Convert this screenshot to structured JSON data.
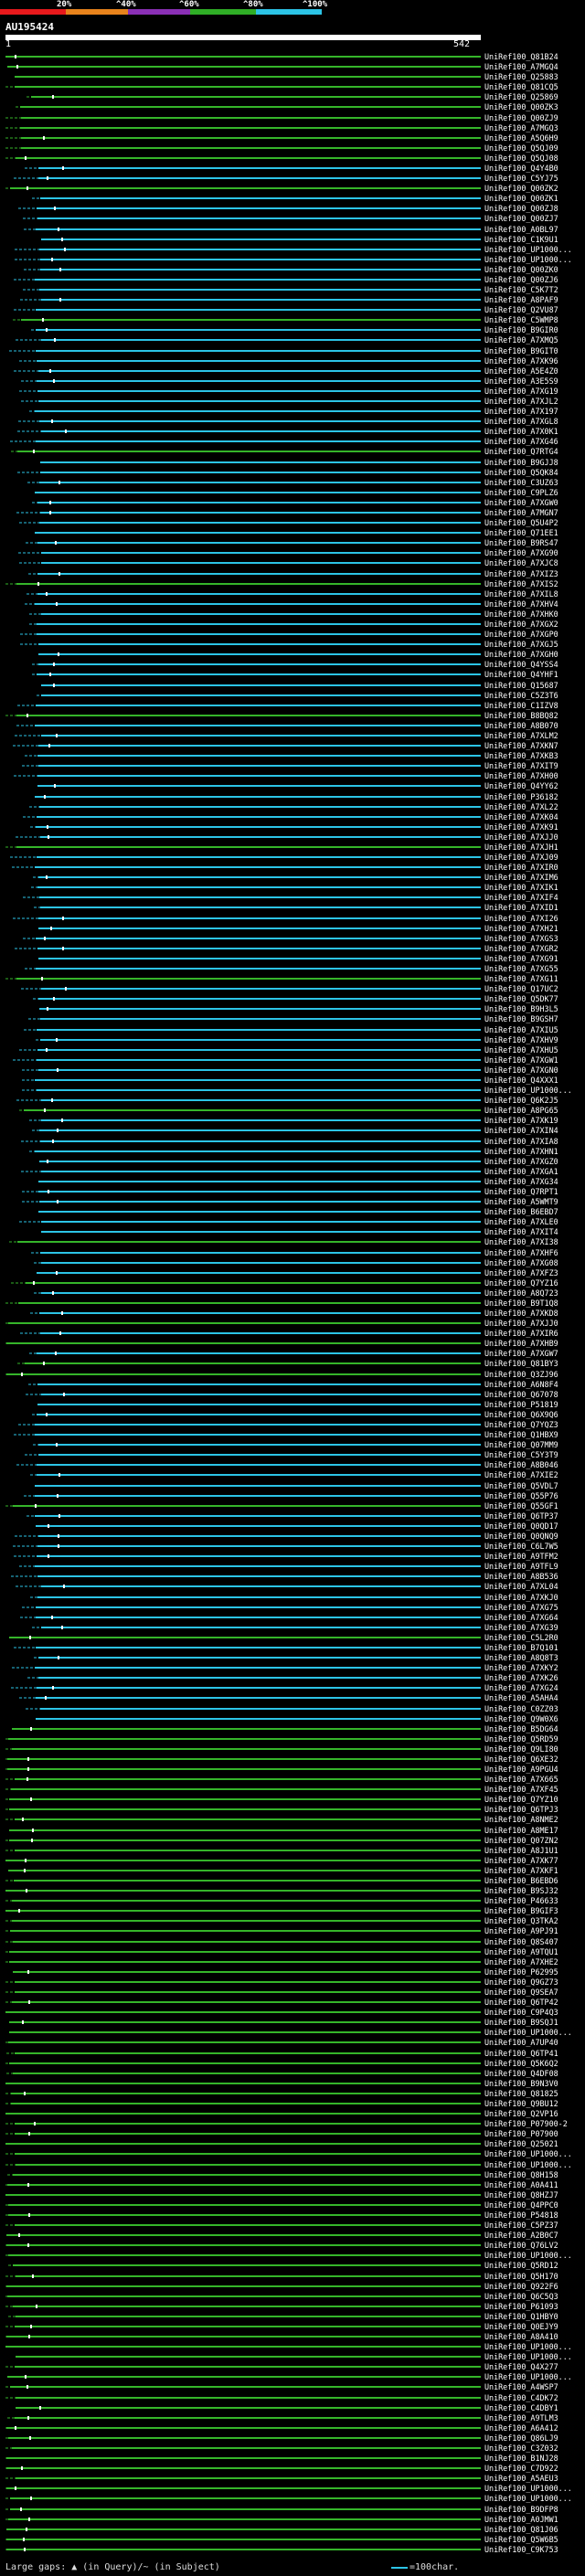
{
  "scale": {
    "marks": [
      "20%",
      "^40%",
      "^60%",
      "^80%",
      "^100%"
    ],
    "colors": [
      "#e8191c",
      "#e8831c",
      "#8a2fb5",
      "#2fae26",
      "#2cc4e6"
    ]
  },
  "query": {
    "id": "AU195424",
    "start": "1",
    "end": "542"
  },
  "hits": [
    "UniRef100_Q81B24",
    "UniRef100_A7MGQ4",
    "UniRef100_Q25883",
    "UniRef100_Q81CQ5",
    "UniRef100_Q25869",
    "UniRef100_Q00ZK3",
    "UniRef100_Q00ZJ9",
    "UniRef100_A7MGQ3",
    "UniRef100_A5Q6H9",
    "UniRef100_Q5QJ09",
    "UniRef100_Q5QJ08",
    "UniRef100_Q4Y4B0",
    "UniRef100_C5YJ75",
    "UniRef100_Q00ZK2",
    "UniRef100_Q00ZK1",
    "UniRef100_Q00ZJ8",
    "UniRef100_Q00ZJ7",
    "UniRef100_A0BL97",
    "UniRef100_C1K9U1",
    "UniRef100_UP1000...",
    "UniRef100_UP1000...",
    "UniRef100_Q00ZK0",
    "UniRef100_Q00ZJ6",
    "UniRef100_C5K7T2",
    "UniRef100_A8PAF9",
    "UniRef100_Q2VU87",
    "UniRef100_C5WMP8",
    "UniRef100_B9GIR0",
    "UniRef100_A7XMQ5",
    "UniRef100_B9GIT0",
    "UniRef100_A7XK96",
    "UniRef100_A5E4Z0",
    "UniRef100_A3E5S9",
    "UniRef100_A7XG19",
    "UniRef100_A7XJL2",
    "UniRef100_A7X197",
    "UniRef100_A7XGL8",
    "UniRef100_A7X0K1",
    "UniRef100_A7XG46",
    "UniRef100_Q7RTG4",
    "UniRef100_B9GJJ8",
    "UniRef100_Q5QK84",
    "UniRef100_C3UZ63",
    "UniRef100_C9PLZ6",
    "UniRef100_A7XGW0",
    "UniRef100_A7MGN7",
    "UniRef100_Q5U4P2",
    "UniRef100_Q71EE1",
    "UniRef100_B9RS47",
    "UniRef100_A7XG90",
    "UniRef100_A7XJC8",
    "UniRef100_A7XIZ3",
    "UniRef100_A7XIS2",
    "UniRef100_A7XIL8",
    "UniRef100_A7XHV4",
    "UniRef100_A7XHK0",
    "UniRef100_A7XGX2",
    "UniRef100_A7XGP0",
    "UniRef100_A7XGJ5",
    "UniRef100_A7XGH0",
    "UniRef100_Q4YSS4",
    "UniRef100_Q4YHF1",
    "UniRef100_Q15687",
    "UniRef100_C5Z3T6",
    "UniRef100_C1IZV8",
    "UniRef100_B8BQ82",
    "UniRef100_A8B070",
    "UniRef100_A7XLM2",
    "UniRef100_A7XKN7",
    "UniRef100_A7XKB3",
    "UniRef100_A7XIT9",
    "UniRef100_A7XH00",
    "UniRef100_Q4YY62",
    "UniRef100_P36182",
    "UniRef100_A7XL22",
    "UniRef100_A7XK04",
    "UniRef100_A7XK91",
    "UniRef100_A7XJJ0",
    "UniRef100_A7XJH1",
    "UniRef100_A7XJ09",
    "UniRef100_A7XIR0",
    "UniRef100_A7XIM6",
    "UniRef100_A7XIK1",
    "UniRef100_A7XIF4",
    "UniRef100_A7XID1",
    "UniRef100_A7XI26",
    "UniRef100_A7XH21",
    "UniRef100_A7XGS3",
    "UniRef100_A7XGR2",
    "UniRef100_A7XG91",
    "UniRef100_A7XG55",
    "UniRef100_A7XG11",
    "UniRef100_Q17UC2",
    "UniRef100_Q5DK77",
    "UniRef100_B9H3L5",
    "UniRef100_B9GSH7",
    "UniRef100_A7XIU5",
    "UniRef100_A7XHV9",
    "UniRef100_A7XHU5",
    "UniRef100_A7XGW1",
    "UniRef100_A7XGN0",
    "UniRef100_Q4XXX1",
    "UniRef100_UP1000...",
    "UniRef100_Q6K2J5",
    "UniRef100_A8PG65",
    "UniRef100_A7XK19",
    "UniRef100_A7XIN4",
    "UniRef100_A7XIA8",
    "UniRef100_A7XHN1",
    "UniRef100_A7XGZ0",
    "UniRef100_A7XGA1",
    "UniRef100_A7XG34",
    "UniRef100_Q7RPT1",
    "UniRef100_A5WMT9",
    "UniRef100_B6EBD7",
    "UniRef100_A7XLE0",
    "UniRef100_A7XIT4",
    "UniRef100_A7XI38",
    "UniRef100_A7XHF6",
    "UniRef100_A7XG08",
    "UniRef100_A7XFZ3",
    "UniRef100_Q7YZ16",
    "UniRef100_A8Q723",
    "UniRef100_B9T1Q8",
    "UniRef100_A7XKD8",
    "UniRef100_A7XJJ0",
    "UniRef100_A7XIR6",
    "UniRef100_A7XHB9",
    "UniRef100_A7XGW7",
    "UniRef100_Q81BY3",
    "UniRef100_Q3ZJ96",
    "UniRef100_A6N8F4",
    "UniRef100_Q67078",
    "UniRef100_P51819",
    "UniRef100_Q6X9Q6",
    "UniRef100_Q7YQZ3",
    "UniRef100_Q1HBX9",
    "UniRef100_Q07MM9",
    "UniRef100_C5Y3T9",
    "UniRef100_A8B046",
    "UniRef100_A7XIE2",
    "UniRef100_Q5VDL7",
    "UniRef100_Q55P76",
    "UniRef100_Q55GF1",
    "UniRef100_Q6TP37",
    "UniRef100_Q0QD17",
    "UniRef100_Q0QNQ9",
    "UniRef100_C6L7W5",
    "UniRef100_A9TFM2",
    "UniRef100_A9TFL9",
    "UniRef100_A8B536",
    "UniRef100_A7XL04",
    "UniRef100_A7XKJ0",
    "UniRef100_A7XG75",
    "UniRef100_A7XG64",
    "UniRef100_A7XG39",
    "UniRef100_C5L2R0",
    "UniRef100_B7Q101",
    "UniRef100_A8Q8T3",
    "UniRef100_A7XKY2",
    "UniRef100_A7XK26",
    "UniRef100_A7XG24",
    "UniRef100_A5AHA4",
    "UniRef100_C0ZZ03",
    "UniRef100_Q9W0X6",
    "UniRef100_B5DG64",
    "UniRef100_Q5RD59",
    "UniRef100_Q9LI80",
    "UniRef100_Q6XE32",
    "UniRef100_A9PGU4",
    "UniRef100_A7X665",
    "UniRef100_A7XF45",
    "UniRef100_Q7YZ10",
    "UniRef100_Q6TPJ3",
    "UniRef100_A8NME2",
    "UniRef100_A8ME17",
    "UniRef100_Q07ZN2",
    "UniRef100_A8J1U1",
    "UniRef100_A7XK77",
    "UniRef100_A7XKF1",
    "UniRef100_B6EBD6",
    "UniRef100_B9SJ32",
    "UniRef100_P46633",
    "UniRef100_B9GIF3",
    "UniRef100_Q3TKA2",
    "UniRef100_A9PJ91",
    "UniRef100_Q8S407",
    "UniRef100_A9TQU1",
    "UniRef100_A7XHE2",
    "UniRef100_P62995",
    "UniRef100_Q9GZ73",
    "UniRef100_Q9SEA7",
    "UniRef100_Q6TP42",
    "UniRef100_C9P4Q3",
    "UniRef100_B9SQJ1",
    "UniRef100_UP1000...",
    "UniRef100_A7UP40",
    "UniRef100_Q6TP41",
    "UniRef100_Q5K6Q2",
    "UniRef100_Q4DF08",
    "UniRef100_B9N3V0",
    "UniRef100_Q81825",
    "UniRef100_Q9BU12",
    "UniRef100_Q2VP16",
    "UniRef100_P07900-2",
    "UniRef100_P07900",
    "UniRef100_Q25021",
    "UniRef100_UP1000...",
    "UniRef100_UP1000...",
    "UniRef100_Q8H158",
    "UniRef100_A0A411",
    "UniRef100_Q8HZJ7",
    "UniRef100_Q4PPC0",
    "UniRef100_P54818",
    "UniRef100_C5PZ37",
    "UniRef100_A2B0C7",
    "UniRef100_Q76LV2",
    "UniRef100_UP1000...",
    "UniRef100_Q5RD12",
    "UniRef100_Q5H170",
    "UniRef100_Q922F6",
    "UniRef100_Q6C5Q3",
    "UniRef100_P61093",
    "UniRef100_Q1HBY0",
    "UniRef100_Q0EJY9",
    "UniRef100_A8A410",
    "UniRef100_UP1000...",
    "UniRef100_UP1000...",
    "UniRef100_Q4X277",
    "UniRef100_UP1000...",
    "UniRef100_A4WSP7",
    "UniRef100_C4DK72",
    "UniRef100_C4DBY1",
    "UniRef100_A9TLM3",
    "UniRef100_A6A412",
    "UniRef100_Q86LJ9",
    "UniRef100_C3Z032",
    "UniRef100_B1NJ28",
    "UniRef100_C7D922",
    "UniRef100_A5AEU3",
    "UniRef100_UP1000...",
    "UniRef100_UP1000...",
    "UniRef100_B9DFP8",
    "UniRef100_A0JMW1",
    "UniRef100_Q81J06",
    "UniRef100_Q5W6B5",
    "UniRef100_C9K753"
  ],
  "legend": {
    "left": "Large gaps: ▲ (in Query)/~ (in Subject)",
    "right": "=100char."
  }
}
